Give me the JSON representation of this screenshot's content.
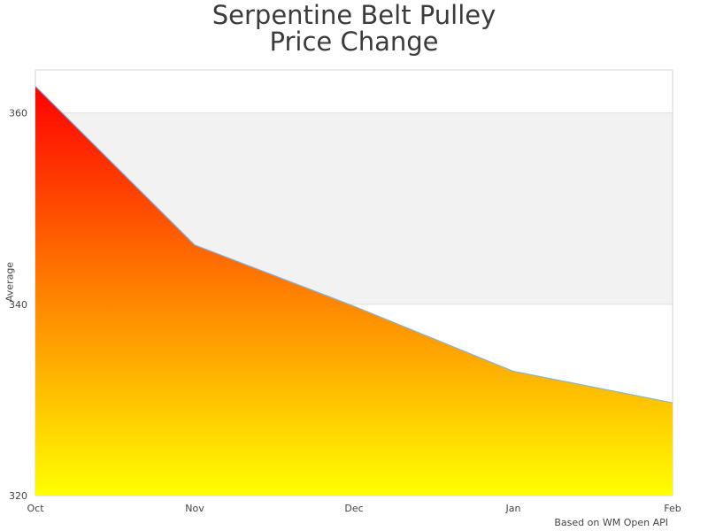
{
  "title_line1": "Serpentine Belt Pulley",
  "title_line2": "Price Change",
  "credit": "Based on WM Open API",
  "chart_data": {
    "type": "area",
    "title": "Serpentine Belt Pulley Price Change",
    "xlabel": "",
    "ylabel": "Average",
    "categories": [
      "Oct",
      "Nov",
      "Dec",
      "Jan",
      "Feb"
    ],
    "series": [
      {
        "name": "Average",
        "values": [
          362.8,
          346.2,
          339.8,
          333.0,
          329.7
        ]
      }
    ],
    "ylim": [
      320,
      364.5
    ],
    "yticks": [
      320,
      340,
      360
    ],
    "grid": true,
    "alternate_bands": true,
    "legend": "none",
    "fill_gradient": {
      "top": "#ff0000",
      "bottom": "#ffff00"
    },
    "line_color": "#7cb5ec",
    "band_color": "#f2f2f2",
    "annotations": [
      "Based on WM Open API"
    ]
  }
}
